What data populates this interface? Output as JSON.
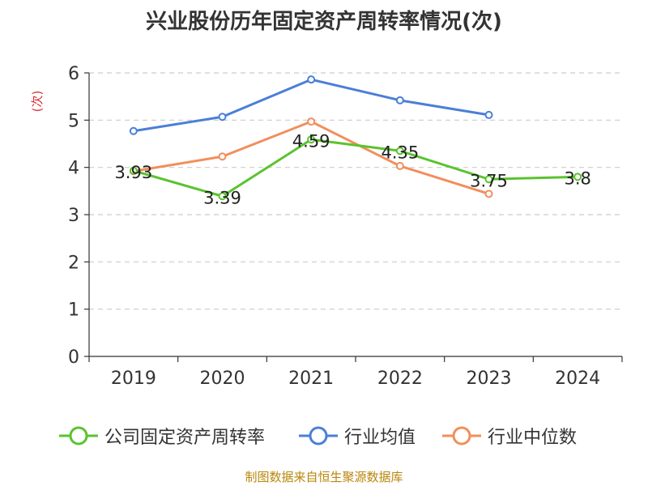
{
  "title": "兴业股份历年固定资产周转率情况(次)",
  "footer": "制图数据来自恒生聚源数据库",
  "chart_data": {
    "type": "line",
    "title": "兴业股份历年固定资产周转率情况(次)",
    "ylabel": "(次)",
    "xlabel": "",
    "categories": [
      "2019",
      "2020",
      "2021",
      "2022",
      "2023",
      "2024"
    ],
    "yticks": [
      "0",
      "1",
      "2",
      "3",
      "4",
      "5",
      "6"
    ],
    "ylim": [
      0,
      6
    ],
    "grid": "horizontal-dashed",
    "legend_position": "bottom",
    "series": [
      {
        "name": "公司固定资产周转率",
        "color": "#5ac32f",
        "values": [
          3.93,
          3.39,
          4.59,
          4.35,
          3.75,
          3.8
        ],
        "labels": [
          "3.93",
          "3.39",
          "4.59",
          "4.35",
          "3.75",
          "3.8"
        ]
      },
      {
        "name": "行业均值",
        "color": "#4a7fd9",
        "values": [
          4.77,
          5.07,
          5.86,
          5.42,
          5.11,
          null
        ]
      },
      {
        "name": "行业中位数",
        "color": "#f28e5c",
        "values": [
          3.92,
          4.23,
          4.97,
          4.03,
          3.44,
          null
        ]
      }
    ]
  }
}
